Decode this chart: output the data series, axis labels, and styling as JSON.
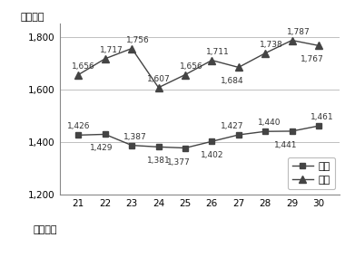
{
  "years": [
    21,
    22,
    23,
    24,
    25,
    26,
    27,
    28,
    29,
    30
  ],
  "tochi": [
    1426,
    1429,
    1387,
    1381,
    1377,
    1402,
    1427,
    1440,
    1441,
    1461
  ],
  "kaoku": [
    1656,
    1717,
    1756,
    1607,
    1656,
    1711,
    1684,
    1738,
    1787,
    1767
  ],
  "tochi_label": "土地",
  "kaoku_label": "家屋",
  "ylabel": "（億円）",
  "xlabel": "（年度）",
  "ylim": [
    1200,
    1850
  ],
  "yticks": [
    1200,
    1400,
    1600,
    1800
  ],
  "line_color": "#444444",
  "marker_square": "s",
  "marker_triangle": "^",
  "grid_color": "#c0c0c0",
  "label_color": "#333333",
  "label_color_tochi": "#333333",
  "label_color_kaoku": "#333333"
}
